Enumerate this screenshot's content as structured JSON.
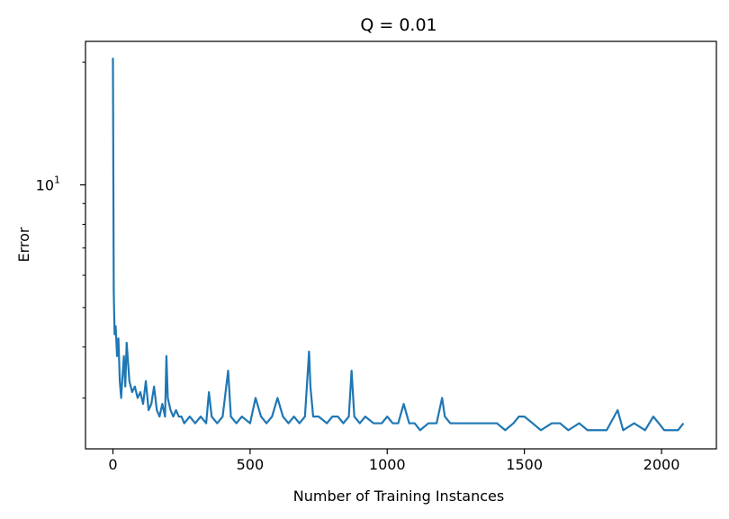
{
  "chart_data": {
    "type": "line",
    "title": "Q = 0.01",
    "xlabel": "Number of Training Instances",
    "ylabel": "Error",
    "xlim": [
      -100,
      2200
    ],
    "ylim": [
      2.25,
      22.5
    ],
    "yscale": "log",
    "xticks": [
      0,
      500,
      1000,
      1500,
      2000
    ],
    "xtick_labels": [
      "0",
      "500",
      "1000",
      "1500",
      "2000"
    ],
    "ytick_major": [
      10
    ],
    "ytick_major_label_base": "10",
    "ytick_major_label_exp": "1",
    "ytick_minor": [
      3,
      4,
      5,
      6,
      7,
      8,
      9,
      20
    ],
    "grid": false,
    "line_color": "#1f77b4",
    "series": [
      {
        "x": [
          0,
          3,
          6,
          10,
          15,
          20,
          25,
          30,
          35,
          40,
          45,
          50,
          60,
          70,
          80,
          90,
          100,
          110,
          120,
          130,
          140,
          150,
          160,
          170,
          180,
          190,
          195,
          200,
          210,
          220,
          230,
          240,
          250,
          260,
          280,
          300,
          320,
          340,
          350,
          360,
          380,
          400,
          420,
          430,
          450,
          470,
          500,
          520,
          540,
          560,
          580,
          600,
          620,
          640,
          660,
          680,
          700,
          715,
          720,
          730,
          750,
          780,
          800,
          820,
          840,
          860,
          870,
          880,
          900,
          920,
          950,
          980,
          1000,
          1020,
          1040,
          1060,
          1080,
          1100,
          1120,
          1150,
          1180,
          1200,
          1210,
          1230,
          1260,
          1300,
          1330,
          1360,
          1400,
          1430,
          1460,
          1480,
          1500,
          1530,
          1560,
          1600,
          1630,
          1660,
          1700,
          1730,
          1760,
          1800,
          1840,
          1860,
          1900,
          1940,
          1970,
          1990,
          2010,
          2040,
          2060,
          2080
        ],
        "values": [
          20.5,
          5.5,
          4.3,
          4.5,
          3.8,
          4.2,
          3.3,
          3.0,
          3.4,
          3.8,
          3.2,
          4.1,
          3.3,
          3.1,
          3.2,
          3.0,
          3.1,
          2.9,
          3.3,
          2.8,
          2.9,
          3.2,
          2.8,
          2.7,
          2.9,
          2.7,
          3.8,
          3.0,
          2.8,
          2.7,
          2.8,
          2.7,
          2.7,
          2.6,
          2.7,
          2.6,
          2.7,
          2.6,
          3.1,
          2.7,
          2.6,
          2.7,
          3.5,
          2.7,
          2.6,
          2.7,
          2.6,
          3.0,
          2.7,
          2.6,
          2.7,
          3.0,
          2.7,
          2.6,
          2.7,
          2.6,
          2.7,
          3.9,
          3.2,
          2.7,
          2.7,
          2.6,
          2.7,
          2.7,
          2.6,
          2.7,
          3.5,
          2.7,
          2.6,
          2.7,
          2.6,
          2.6,
          2.7,
          2.6,
          2.6,
          2.9,
          2.6,
          2.6,
          2.5,
          2.6,
          2.6,
          3.0,
          2.7,
          2.6,
          2.6,
          2.6,
          2.6,
          2.6,
          2.6,
          2.5,
          2.6,
          2.7,
          2.7,
          2.6,
          2.5,
          2.6,
          2.6,
          2.5,
          2.6,
          2.5,
          2.5,
          2.5,
          2.8,
          2.5,
          2.6,
          2.5,
          2.7,
          2.6,
          2.5,
          2.5,
          2.5,
          2.6
        ]
      }
    ]
  }
}
